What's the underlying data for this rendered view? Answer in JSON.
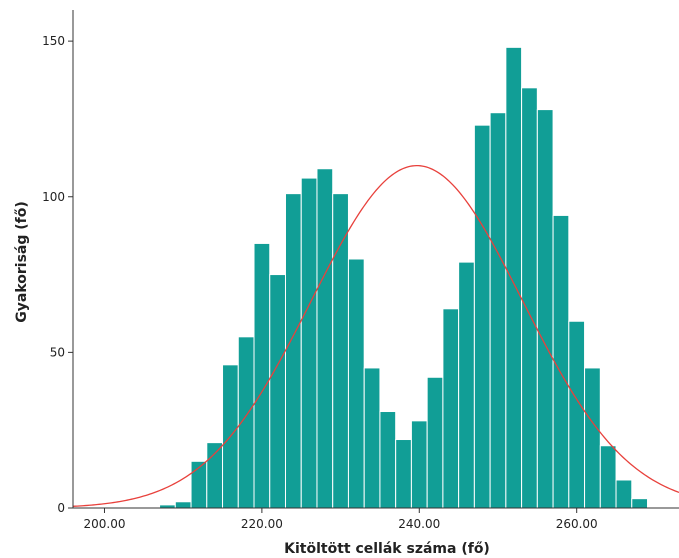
{
  "chart_data": {
    "type": "bar",
    "subtype": "histogram-with-normal-curve",
    "title": "",
    "xlabel": "Kitöltött cellák száma (fő)",
    "ylabel": "Gyakoriság (fő)",
    "xlim": [
      196,
      273
    ],
    "ylim": [
      0,
      160
    ],
    "bin_width": 2,
    "x_ticks": [
      {
        "value": 200,
        "label": "200.00"
      },
      {
        "value": 220,
        "label": "220.00"
      },
      {
        "value": 240,
        "label": "240.00"
      },
      {
        "value": 260,
        "label": "260.00"
      }
    ],
    "y_ticks": [
      {
        "value": 0,
        "label": "0"
      },
      {
        "value": 50,
        "label": "50"
      },
      {
        "value": 100,
        "label": "100"
      },
      {
        "value": 150,
        "label": "150"
      }
    ],
    "bin_starts": [
      207,
      209,
      211,
      213,
      215,
      217,
      219,
      221,
      223,
      225,
      227,
      229,
      231,
      233,
      235,
      237,
      239,
      241,
      243,
      245,
      247,
      249,
      251,
      253,
      255,
      257,
      259,
      261,
      263,
      265,
      267
    ],
    "values": [
      1,
      2,
      15,
      21,
      46,
      55,
      85,
      75,
      101,
      106,
      109,
      101,
      80,
      45,
      31,
      22,
      28,
      42,
      64,
      79,
      123,
      127,
      148,
      135,
      128,
      94,
      60,
      45,
      20,
      9,
      3
    ],
    "normal_curve": {
      "mean": 239.7,
      "sd": 13.4,
      "peak": 110
    },
    "colors": {
      "bars": "#119e96",
      "bar_edges": "#ffffff",
      "curve": "#e8413c",
      "axes": "#333333"
    },
    "grid": false,
    "legend": "none"
  }
}
